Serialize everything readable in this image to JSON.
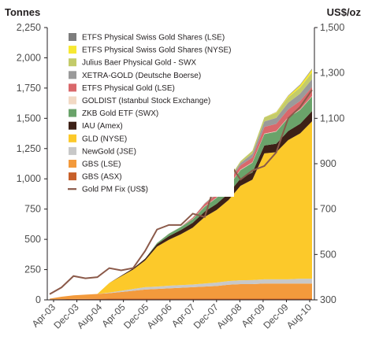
{
  "chart_data": {
    "type": "area",
    "title": "",
    "ylabel_left": "Tonnes",
    "ylabel_right": "US$/oz",
    "ylim_left": [
      0,
      2250
    ],
    "ylim_right": [
      300,
      1500
    ],
    "yticks_left": [
      "0",
      "250",
      "500",
      "750",
      "1,000",
      "1,250",
      "1,500",
      "1,750",
      "2,000",
      "2,250"
    ],
    "yticks_left_values": [
      0,
      250,
      500,
      750,
      1000,
      1250,
      1500,
      1750,
      2000,
      2250
    ],
    "yticks_right": [
      "300",
      "500",
      "700",
      "900",
      "1,100",
      "1,300",
      "1,500"
    ],
    "yticks_right_values": [
      300,
      500,
      700,
      900,
      1100,
      1300,
      1500
    ],
    "x_tick_labels": [
      "Apr-03",
      "Dec-03",
      "Aug-04",
      "Apr-05",
      "Dec-05",
      "Aug-06",
      "Apr-07",
      "Dec-07",
      "Aug-08",
      "Apr-09",
      "Dec-09",
      "Aug-10"
    ],
    "legend_position": "top-left",
    "x": [
      "Apr-03",
      "Aug-03",
      "Dec-03",
      "Apr-04",
      "Aug-04",
      "Dec-04",
      "Apr-05",
      "Aug-05",
      "Dec-05",
      "Apr-06",
      "Aug-06",
      "Dec-06",
      "Apr-07",
      "Aug-07",
      "Dec-07",
      "Apr-08",
      "Aug-08",
      "Dec-08",
      "Apr-09",
      "Aug-09",
      "Dec-09",
      "Apr-10",
      "Aug-10"
    ],
    "series": [
      {
        "name": "GBS (ASX)",
        "color": "#c8602a",
        "values": [
          5,
          6,
          7,
          8,
          9,
          10,
          10,
          10,
          10,
          10,
          10,
          10,
          10,
          10,
          10,
          10,
          10,
          10,
          10,
          10,
          10,
          10,
          10
        ]
      },
      {
        "name": "GBS (LSE)",
        "color": "#f39a3c",
        "values": [
          5,
          20,
          30,
          35,
          40,
          45,
          55,
          65,
          75,
          80,
          85,
          90,
          95,
          100,
          105,
          115,
          120,
          120,
          125,
          125,
          125,
          125,
          125
        ]
      },
      {
        "name": "NewGold (JSE)",
        "color": "#c8c8c8",
        "values": [
          0,
          0,
          0,
          0,
          0,
          5,
          10,
          15,
          20,
          20,
          22,
          22,
          22,
          25,
          28,
          30,
          32,
          33,
          35,
          35,
          35,
          40,
          40
        ]
      },
      {
        "name": "GLD (NYSE)",
        "color": "#fcc92a",
        "values": [
          0,
          0,
          0,
          0,
          0,
          80,
          120,
          160,
          220,
          330,
          380,
          420,
          470,
          550,
          600,
          670,
          780,
          830,
          1040,
          1050,
          1150,
          1200,
          1300
        ]
      },
      {
        "name": "IAU (Amex)",
        "color": "#3d2117",
        "values": [
          0,
          0,
          0,
          0,
          0,
          0,
          5,
          10,
          15,
          20,
          30,
          35,
          40,
          45,
          50,
          55,
          60,
          60,
          65,
          70,
          75,
          80,
          85
        ]
      },
      {
        "name": "ZKB Gold ETF (SWX)",
        "color": "#6aa36a",
        "values": [
          0,
          0,
          0,
          0,
          0,
          0,
          0,
          0,
          0,
          10,
          20,
          25,
          30,
          40,
          50,
          60,
          70,
          80,
          95,
          100,
          110,
          115,
          120
        ]
      },
      {
        "name": "GOLDIST (Istanbul Stock Exchange)",
        "color": "#f2d9c4",
        "values": [
          0,
          0,
          0,
          0,
          0,
          0,
          0,
          0,
          0,
          0,
          2,
          3,
          3,
          3,
          3,
          3,
          4,
          4,
          4,
          4,
          4,
          4,
          4
        ]
      },
      {
        "name": "ETFS Physical Gold (LSE)",
        "color": "#d9686b",
        "values": [
          0,
          0,
          0,
          0,
          0,
          0,
          0,
          0,
          0,
          0,
          0,
          0,
          10,
          20,
          25,
          30,
          35,
          40,
          55,
          60,
          65,
          70,
          75
        ]
      },
      {
        "name": "XETRA-GOLD (Deutsche Boerse)",
        "color": "#9a9a9a",
        "values": [
          0,
          0,
          0,
          0,
          0,
          0,
          0,
          0,
          0,
          0,
          0,
          0,
          0,
          5,
          8,
          10,
          20,
          30,
          45,
          50,
          55,
          60,
          65
        ]
      },
      {
        "name": "Julius Baer Physical Gold - SWX",
        "color": "#c3cb6a",
        "values": [
          0,
          0,
          0,
          0,
          0,
          0,
          0,
          0,
          0,
          0,
          0,
          0,
          0,
          0,
          5,
          10,
          15,
          25,
          35,
          40,
          45,
          50,
          55
        ]
      },
      {
        "name": "ETFS Physical Swiss Gold Shares (NYSE)",
        "color": "#f7e832",
        "values": [
          0,
          0,
          0,
          0,
          0,
          0,
          0,
          0,
          0,
          0,
          0,
          0,
          0,
          0,
          0,
          0,
          0,
          0,
          0,
          5,
          10,
          20,
          25
        ]
      },
      {
        "name": "ETFS Physical Swiss Gold Shares (LSE)",
        "color": "#7d7d7d",
        "values": [
          0,
          0,
          0,
          0,
          0,
          0,
          0,
          0,
          0,
          0,
          0,
          0,
          0,
          0,
          0,
          0,
          0,
          0,
          0,
          3,
          4,
          5,
          6
        ]
      },
      {
        "name": "Gold PM Fix (US$)",
        "color": "#8b5a4a",
        "axis": "right",
        "type": "line",
        "values": [
          325,
          355,
          405,
          395,
          400,
          440,
          430,
          440,
          515,
          610,
          630,
          630,
          680,
          665,
          835,
          910,
          830,
          870,
          890,
          950,
          1100,
          1150,
          1225
        ]
      }
    ]
  }
}
